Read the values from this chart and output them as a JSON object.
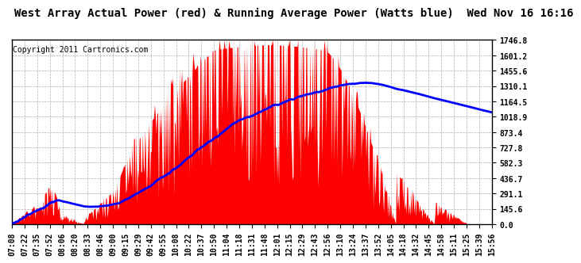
{
  "title": "West Array Actual Power (red) & Running Average Power (Watts blue)  Wed Nov 16 16:16",
  "copyright": "Copyright 2011 Cartronics.com",
  "background_color": "#ffffff",
  "plot_bg_color": "#ffffff",
  "grid_color": "#b0b0b0",
  "y_ticks": [
    0.0,
    145.6,
    291.1,
    436.7,
    582.3,
    727.8,
    873.4,
    1018.9,
    1164.5,
    1310.1,
    1455.6,
    1601.2,
    1746.8
  ],
  "x_labels": [
    "07:08",
    "07:22",
    "07:35",
    "07:52",
    "08:06",
    "08:20",
    "08:33",
    "08:46",
    "09:00",
    "09:15",
    "09:29",
    "09:42",
    "09:55",
    "10:08",
    "10:22",
    "10:37",
    "10:50",
    "11:04",
    "11:18",
    "11:31",
    "11:48",
    "12:01",
    "12:15",
    "12:29",
    "12:43",
    "12:56",
    "13:10",
    "13:24",
    "13:37",
    "13:52",
    "14:05",
    "14:18",
    "14:32",
    "14:45",
    "14:58",
    "15:11",
    "15:25",
    "15:39",
    "15:56"
  ],
  "bar_color": "#ff0000",
  "line_color": "#0000ff",
  "title_fontsize": 10,
  "copyright_fontsize": 7,
  "tick_fontsize": 7,
  "ylim": [
    0,
    1746.8
  ],
  "n_points": 600
}
